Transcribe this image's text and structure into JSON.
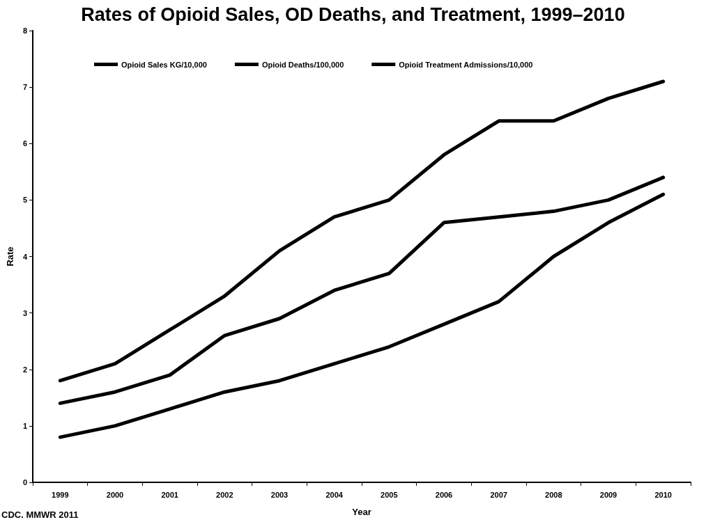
{
  "chart_data": {
    "type": "line",
    "title": "Rates of Opioid Sales, OD Deaths, and Treatment, 1999–2010",
    "xlabel": "Year",
    "ylabel": "Rate",
    "categories": [
      "1999",
      "2000",
      "2001",
      "2002",
      "2003",
      "2004",
      "2005",
      "2006",
      "2007",
      "2008",
      "2009",
      "2010"
    ],
    "series": [
      {
        "name": "Opioid Sales KG/10,000",
        "color": "#000000",
        "values": [
          1.8,
          2.1,
          2.7,
          3.3,
          4.1,
          4.7,
          5.0,
          5.8,
          6.4,
          6.4,
          6.8,
          7.1
        ]
      },
      {
        "name": "Opioid Deaths/100,000",
        "color": "#000000",
        "values": [
          1.4,
          1.6,
          1.9,
          2.6,
          2.9,
          3.4,
          3.7,
          4.6,
          4.7,
          4.8,
          5.0,
          5.4
        ]
      },
      {
        "name": "Opioid Treatment Admissions/10,000",
        "color": "#000000",
        "values": [
          0.8,
          1.0,
          1.3,
          1.6,
          1.8,
          2.1,
          2.4,
          2.8,
          3.2,
          4.0,
          4.6,
          5.1
        ]
      }
    ],
    "ylim": [
      0,
      8
    ],
    "yticks": [
      0,
      1,
      2,
      3,
      4,
      5,
      6,
      7,
      8
    ],
    "grid": false,
    "legend": "top",
    "marker": "none",
    "line_style": "solid",
    "annotations": [
      "CDC. MMWR 2011"
    ]
  }
}
